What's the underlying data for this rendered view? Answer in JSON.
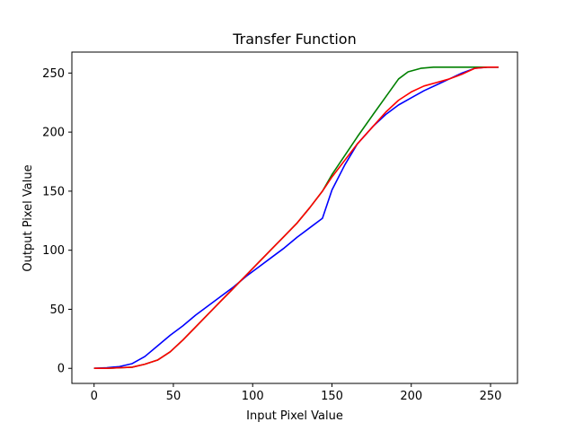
{
  "chart_data": {
    "type": "line",
    "title": "Transfer Function",
    "xlabel": "Input Pixel Value",
    "ylabel": "Output Pixel Value",
    "xlim": [
      -14,
      267
    ],
    "ylim": [
      -12.75,
      267.75
    ],
    "xticks": [
      0,
      50,
      100,
      150,
      200,
      250
    ],
    "yticks": [
      0,
      50,
      100,
      150,
      200,
      250
    ],
    "grid": false,
    "series": [
      {
        "color": "#0000ff",
        "x": [
          0,
          8,
          16,
          24,
          32,
          40,
          48,
          56,
          64,
          72,
          80,
          88,
          96,
          104,
          112,
          120,
          128,
          136,
          144,
          150,
          158,
          166,
          176,
          184,
          192,
          200,
          208,
          216,
          224,
          232,
          240,
          248,
          255
        ],
        "y": [
          0,
          0.5,
          1.5,
          4,
          10,
          19,
          28,
          36,
          45,
          53,
          61,
          69,
          78,
          86,
          94,
          102,
          111,
          119,
          127,
          151,
          172,
          190,
          205,
          215,
          223,
          229,
          235,
          240,
          245,
          250,
          254,
          255,
          255
        ]
      },
      {
        "color": "#008000",
        "x": [
          0,
          8,
          16,
          24,
          32,
          40,
          48,
          56,
          64,
          72,
          80,
          88,
          96,
          104,
          112,
          120,
          128,
          136,
          144,
          150,
          158,
          166,
          176,
          184,
          192,
          198,
          206,
          214,
          224,
          234,
          244,
          255
        ],
        "y": [
          0,
          0,
          0.5,
          1,
          3.5,
          7,
          14,
          24,
          35,
          46,
          57,
          68,
          79,
          90,
          101,
          112,
          123,
          136,
          150,
          164,
          180,
          196,
          215,
          230,
          245,
          251,
          254,
          255,
          255,
          255,
          255,
          255
        ]
      },
      {
        "color": "#ff0000",
        "x": [
          0,
          8,
          16,
          24,
          32,
          40,
          48,
          56,
          64,
          72,
          80,
          88,
          96,
          104,
          112,
          120,
          128,
          136,
          144,
          150,
          158,
          166,
          176,
          184,
          192,
          200,
          208,
          216,
          224,
          232,
          240,
          248,
          255
        ],
        "y": [
          0,
          0,
          0.5,
          1,
          3.5,
          7,
          14,
          24,
          35,
          46,
          57,
          68,
          79,
          90,
          101,
          112,
          123,
          136,
          150,
          162,
          176,
          190,
          205,
          217,
          227,
          234,
          239,
          242,
          245,
          249,
          254,
          255,
          255
        ]
      }
    ]
  }
}
